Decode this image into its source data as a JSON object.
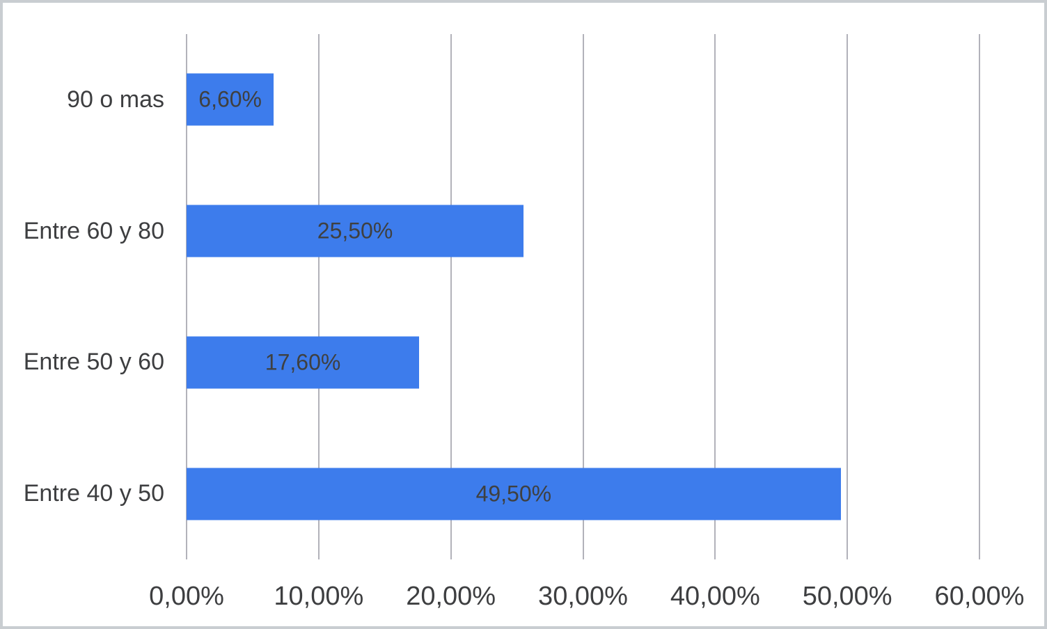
{
  "chart_data": {
    "type": "bar",
    "orientation": "horizontal",
    "title": "",
    "xlabel": "",
    "ylabel": "",
    "categories": [
      "90 o mas",
      "Entre 60 y 80",
      "Entre 50 y 60",
      "Entre 40 y 50"
    ],
    "values": [
      6.6,
      25.5,
      17.6,
      49.5
    ],
    "value_labels": [
      "6,60%",
      "25,50%",
      "17,60%",
      "49,50%"
    ],
    "xlim": [
      0,
      60
    ],
    "x_tick_values": [
      0,
      10,
      20,
      30,
      40,
      50,
      60
    ],
    "x_tick_labels": [
      "0,00%",
      "10,00%",
      "20,00%",
      "30,00%",
      "40,00%",
      "50,00%",
      "60,00%"
    ],
    "grid": "vertical",
    "legend": "none",
    "colors": {
      "bar_fill": "#3d7cec",
      "gridline": "#b2b2ba",
      "data_label_text": "#3f4040",
      "axis_label_text": "#3d3e40",
      "background": "#ffffff",
      "frame_border": "#c9cdd1"
    }
  }
}
